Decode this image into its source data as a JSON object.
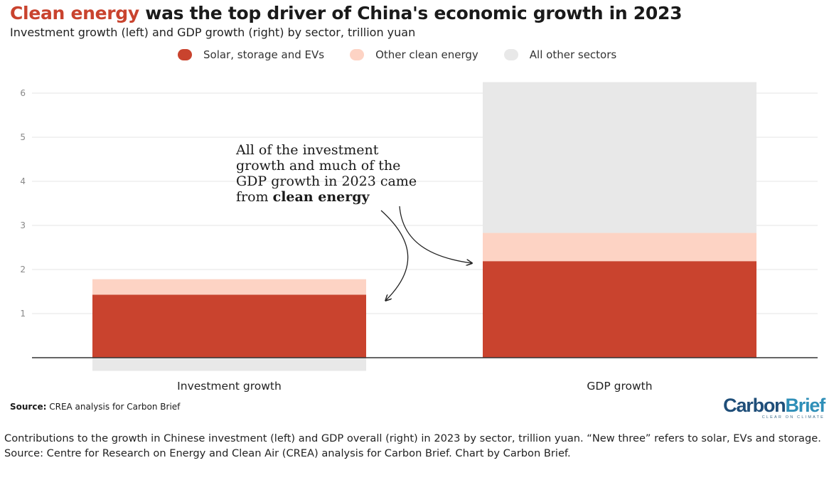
{
  "header": {
    "title_highlight": "Clean energy",
    "title_rest": " was the top driver of China's economic growth in 2023",
    "subtitle": "Investment growth (left) and GDP growth (right) by sector, trillion yuan"
  },
  "legend": [
    {
      "label": "Solar, storage and EVs",
      "color": "#c9432e"
    },
    {
      "label": "Other clean energy",
      "color": "#fdd3c4"
    },
    {
      "label": "All other sectors",
      "color": "#e8e8e8"
    }
  ],
  "annotation": {
    "lines": [
      "All of the investment",
      "growth and much of the",
      "GDP growth in 2023 came"
    ],
    "last_prefix": "from ",
    "last_bold": "clean energy"
  },
  "chart_data": {
    "type": "bar",
    "stacked": true,
    "categories": [
      "Investment growth",
      "GDP growth"
    ],
    "series": [
      {
        "name": "Solar, storage and EVs",
        "color": "#c9432e",
        "values": [
          1.43,
          2.19
        ]
      },
      {
        "name": "Other clean energy",
        "color": "#fdd3c4",
        "values": [
          0.35,
          0.64
        ]
      },
      {
        "name": "All other sectors",
        "color": "#e8e8e8",
        "values": [
          -0.3,
          3.42
        ]
      }
    ],
    "ylim": [
      0,
      6
    ],
    "yticks": [
      1,
      2,
      3,
      4,
      5,
      6
    ],
    "grid": true,
    "legend_position": "top"
  },
  "source": {
    "label": "Source:",
    "text": " CREA analysis for Carbon Brief"
  },
  "logo": {
    "part1": "Carbon",
    "part2": "Brief",
    "tagline": "CLEAR ON CLIMATE"
  },
  "caption": "Contributions to the growth in Chinese investment (left) and GDP overall (right) in 2023 by sector, trillion yuan. “New three” refers to solar, EVs and storage. Source: Centre for Research on Energy and Clean Air (CREA) analysis for Carbon Brief. Chart by Carbon Brief."
}
